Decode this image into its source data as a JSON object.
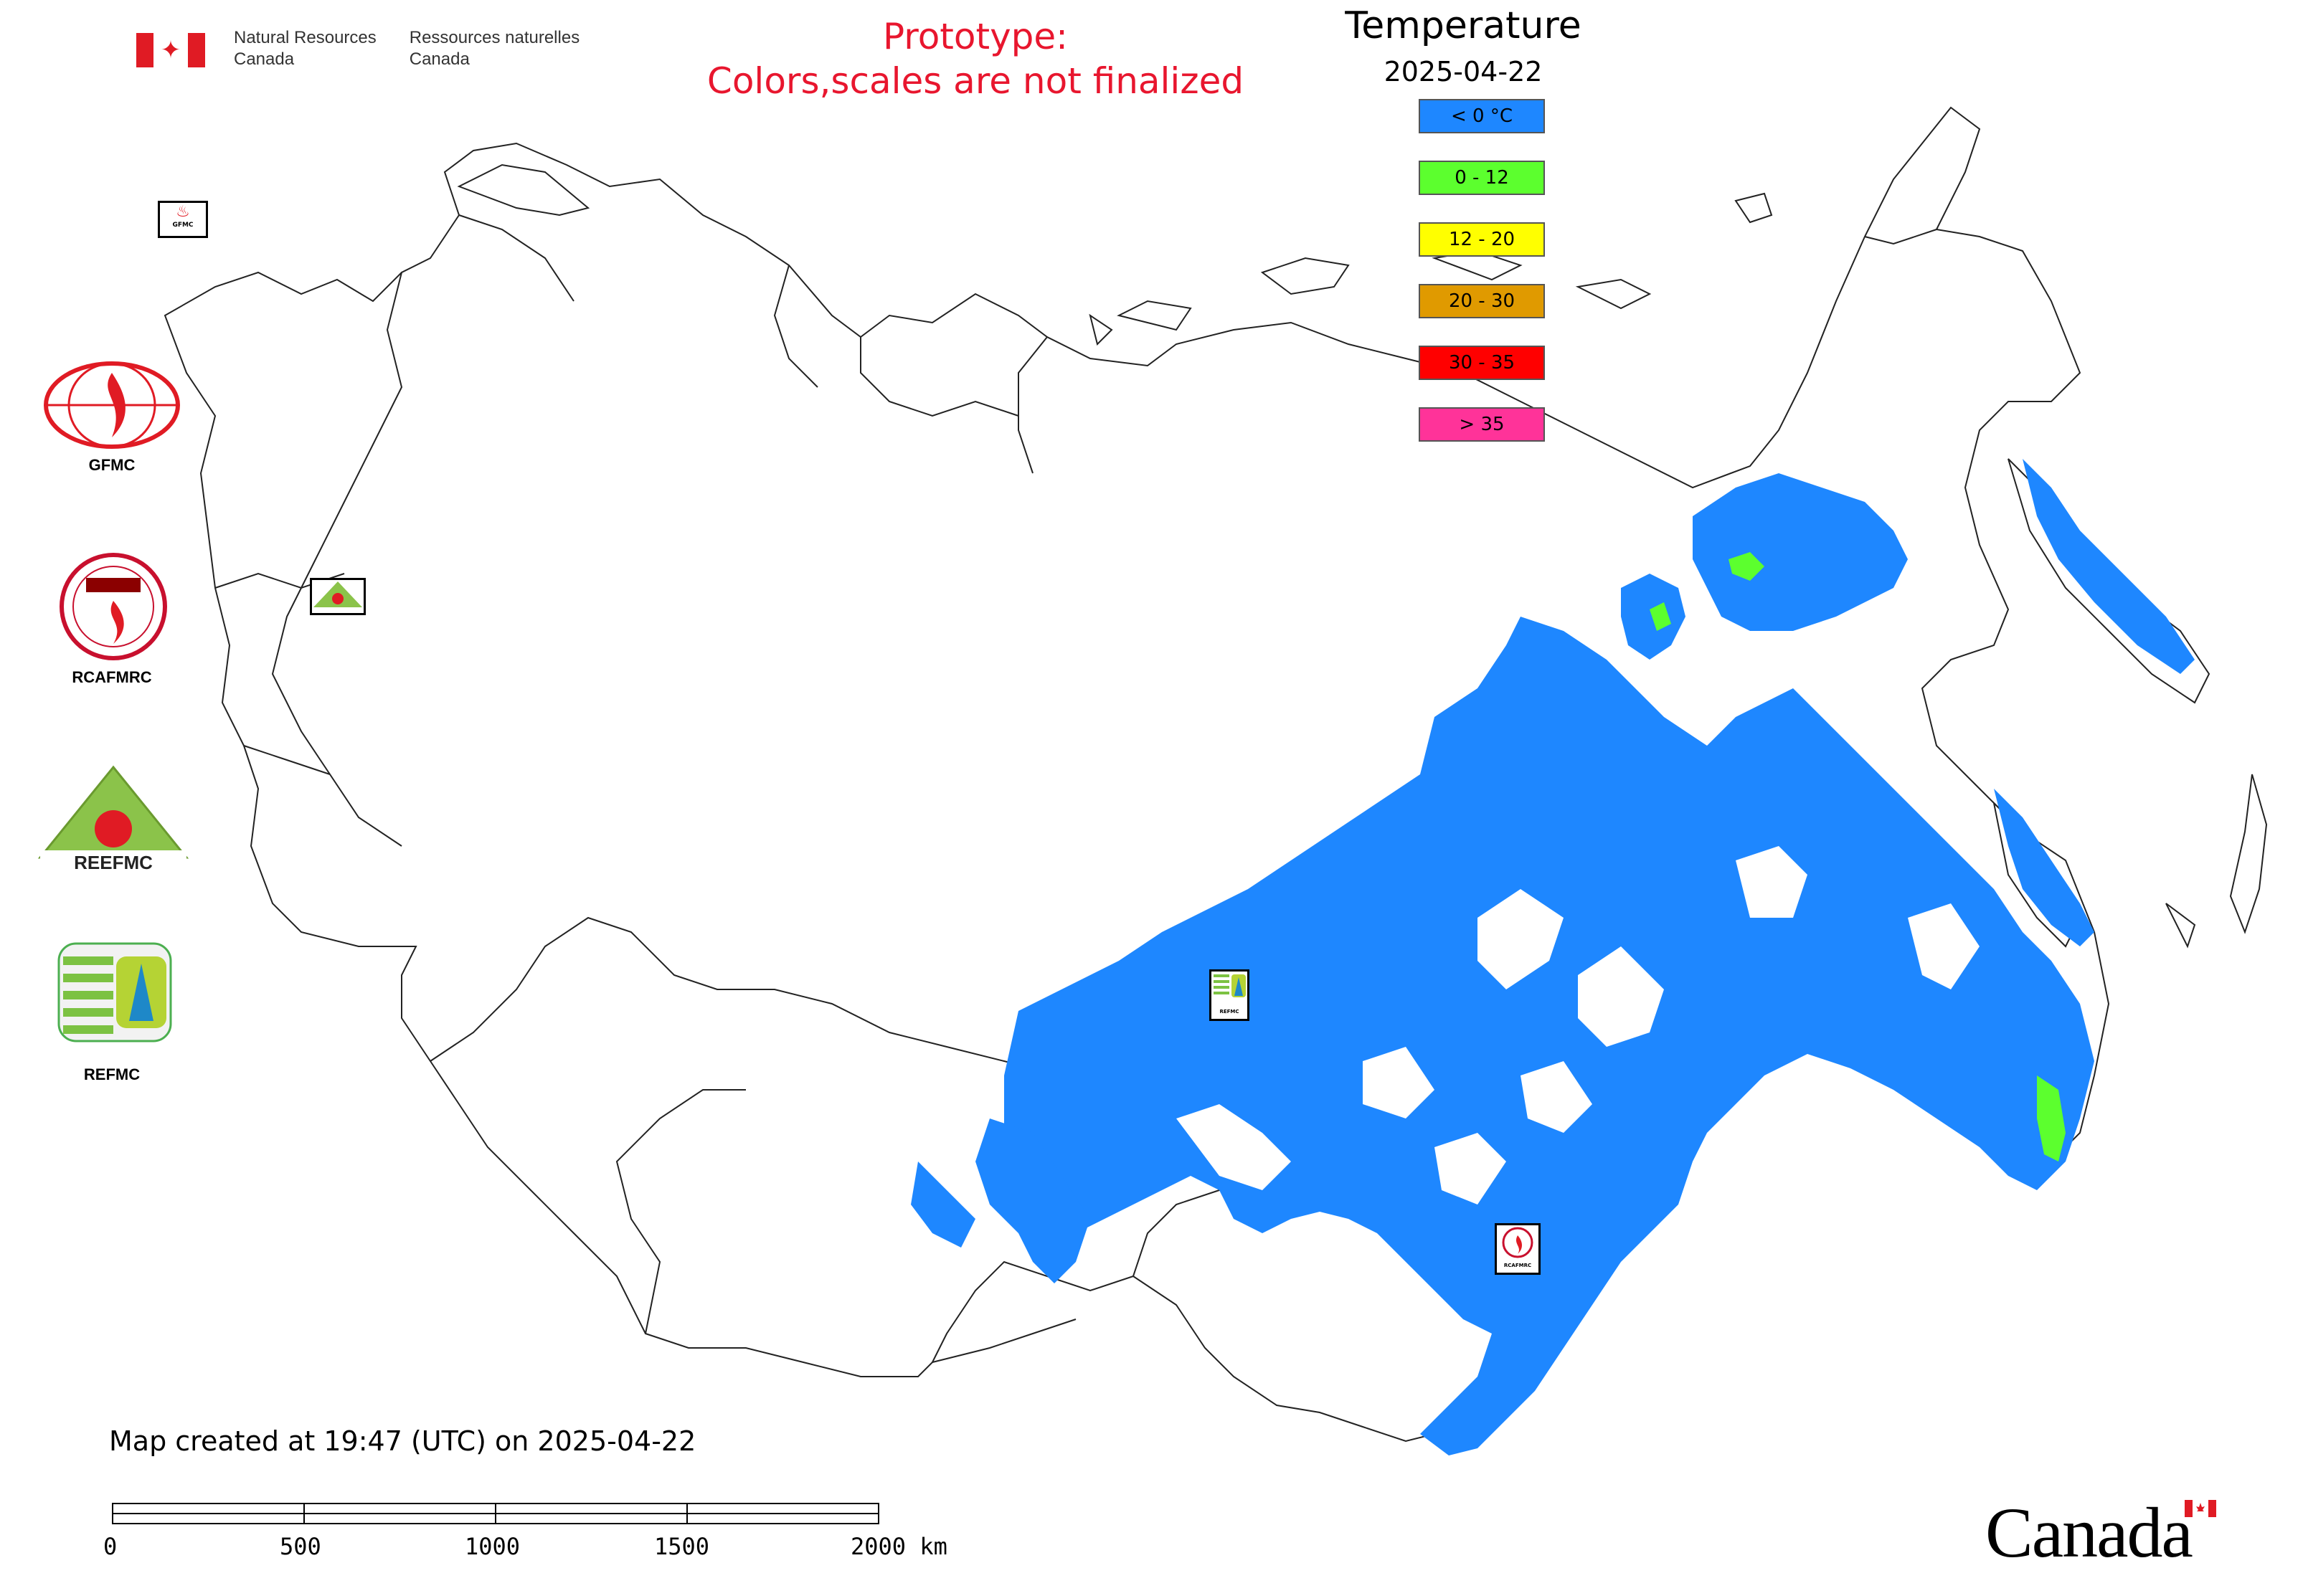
{
  "header": {
    "dept_en_line1": "Natural Resources",
    "dept_en_line2": "Canada",
    "dept_fr_line1": "Ressources naturelles",
    "dept_fr_line2": "Canada",
    "prototype_line1": "Prototype:",
    "prototype_line2": "Colors,scales are not finalized"
  },
  "legend": {
    "title": "Temperature",
    "date": "2025-04-22",
    "items": [
      {
        "label": "< 0 °C",
        "color": "#1e87ff"
      },
      {
        "label": "0 - 12",
        "color": "#5cff2e"
      },
      {
        "label": "12 - 20",
        "color": "#ffff00"
      },
      {
        "label": "20 - 30",
        "color": "#e09a00"
      },
      {
        "label": "30 - 35",
        "color": "#ff0000"
      },
      {
        "label": "> 35",
        "color": "#ff3399"
      }
    ]
  },
  "partners": {
    "gfmc": "GFMC",
    "rcafmrc": "RCAFMRC",
    "reefmc": "REEFMC",
    "refmc": "REFMC"
  },
  "map_markers": {
    "gfmc": "GFMC",
    "reefmc": "REEFMC",
    "refmc": "REFMC",
    "rcafmrc": "RCAFMRC"
  },
  "footer": {
    "created": "Map created at 19:47 (UTC) on 2025-04-22",
    "scale_labels": [
      "0",
      "500",
      "1000",
      "1500",
      "2000 km"
    ],
    "wordmark": "Canada"
  },
  "colors": {
    "below_zero": "#1e87ff",
    "zero_to_twelve": "#5cff2e",
    "prototype_text": "#e8162e"
  }
}
